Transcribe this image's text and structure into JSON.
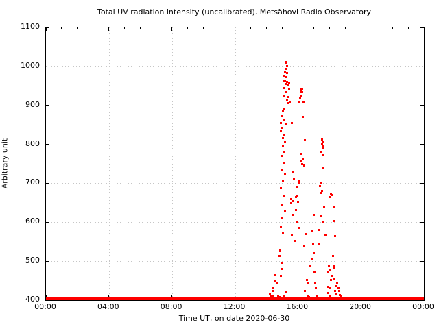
{
  "window": {
    "background": "#ffffff",
    "border_color": "#000000",
    "grid_color": "#c6c6c6"
  },
  "chart_data": {
    "type": "scatter",
    "title": "Total UV radiation intensity (uncalibrated). Metsähovi Radio Observatory",
    "xlabel": "Time UT, on date 2020-06-30",
    "ylabel": "Arbitrary unit",
    "legend_position": "none",
    "grid": "dotted",
    "marker_color": "#ff0000",
    "marker_style": "small-dot",
    "xlim_hours": [
      0,
      24
    ],
    "ylim": [
      400,
      1100
    ],
    "xticks": [
      {
        "hour": 0,
        "label": "00:00"
      },
      {
        "hour": 4,
        "label": "04:00"
      },
      {
        "hour": 8,
        "label": "08:00"
      },
      {
        "hour": 12,
        "label": "12:00"
      },
      {
        "hour": 16,
        "label": "16:00"
      },
      {
        "hour": 20,
        "label": "20:00"
      },
      {
        "hour": 24,
        "label": "00:00"
      }
    ],
    "yticks": [
      400,
      500,
      600,
      700,
      800,
      900,
      1000,
      1100
    ],
    "minor_xtick_every_hours": 1,
    "baseline": {
      "description": "dense sensor-floor readings across the entire day",
      "t_start_hours": 0,
      "t_end_hours": 24,
      "value": 403
    },
    "points": [
      [
        15.28,
        1012
      ],
      [
        15.24,
        1008
      ],
      [
        15.31,
        1000
      ],
      [
        15.26,
        993
      ],
      [
        15.2,
        985
      ],
      [
        15.32,
        983
      ],
      [
        15.13,
        974
      ],
      [
        15.28,
        972
      ],
      [
        15.09,
        963
      ],
      [
        15.2,
        962
      ],
      [
        15.31,
        960
      ],
      [
        15.43,
        958
      ],
      [
        15.24,
        955
      ],
      [
        15.35,
        953
      ],
      [
        15.11,
        944
      ],
      [
        15.46,
        942
      ],
      [
        15.27,
        933
      ],
      [
        15.15,
        925
      ],
      [
        15.41,
        921
      ],
      [
        15.29,
        912
      ],
      [
        15.49,
        909
      ],
      [
        15.38,
        905
      ],
      [
        15.14,
        892
      ],
      [
        15.07,
        885
      ],
      [
        14.99,
        873
      ],
      [
        15.11,
        862
      ],
      [
        14.94,
        855
      ],
      [
        15.63,
        855
      ],
      [
        15.21,
        852
      ],
      [
        14.98,
        842
      ],
      [
        14.91,
        833
      ],
      [
        15.13,
        825
      ],
      [
        15.07,
        816
      ],
      [
        15.17,
        806
      ],
      [
        15.03,
        794
      ],
      [
        15.1,
        780
      ],
      [
        15.01,
        771
      ],
      [
        15.12,
        752
      ],
      [
        14.99,
        733
      ],
      [
        15.16,
        722
      ],
      [
        15.04,
        705
      ],
      [
        14.91,
        688
      ],
      [
        15.09,
        667
      ],
      [
        14.96,
        644
      ],
      [
        15.19,
        629
      ],
      [
        15.01,
        611
      ],
      [
        14.93,
        589
      ],
      [
        15.06,
        571
      ],
      [
        14.86,
        527
      ],
      [
        14.83,
        513
      ],
      [
        14.96,
        496
      ],
      [
        15.01,
        480
      ],
      [
        14.51,
        464
      ],
      [
        14.91,
        462
      ],
      [
        14.59,
        450
      ],
      [
        14.69,
        443
      ],
      [
        14.38,
        432
      ],
      [
        14.46,
        423
      ],
      [
        14.21,
        417
      ],
      [
        14.31,
        410
      ],
      [
        14.12,
        407
      ],
      [
        14.26,
        404
      ],
      [
        14.56,
        407
      ],
      [
        14.76,
        411
      ],
      [
        14.06,
        403
      ],
      [
        13.96,
        404
      ],
      [
        14.42,
        412
      ],
      [
        14.64,
        405
      ],
      [
        14.86,
        408
      ],
      [
        15.22,
        420
      ],
      [
        15.3,
        405
      ],
      [
        15.1,
        410
      ],
      [
        15.61,
        567
      ],
      [
        15.81,
        552
      ],
      [
        15.65,
        728
      ],
      [
        15.76,
        710
      ],
      [
        15.71,
        619
      ],
      [
        15.59,
        659
      ],
      [
        15.69,
        654
      ],
      [
        15.86,
        664
      ],
      [
        15.96,
        669
      ],
      [
        16.01,
        652
      ],
      [
        15.91,
        689
      ],
      [
        16.06,
        699
      ],
      [
        16.11,
        705
      ],
      [
        15.56,
        648
      ],
      [
        15.87,
        632
      ],
      [
        15.97,
        601
      ],
      [
        16.05,
        585
      ],
      [
        16.19,
        943
      ],
      [
        16.29,
        941
      ],
      [
        16.16,
        936
      ],
      [
        16.26,
        933
      ],
      [
        16.23,
        925
      ],
      [
        16.13,
        918
      ],
      [
        16.06,
        909
      ],
      [
        16.36,
        907
      ],
      [
        16.33,
        871
      ],
      [
        16.46,
        810
      ],
      [
        16.22,
        776
      ],
      [
        16.31,
        764
      ],
      [
        16.26,
        749
      ],
      [
        16.41,
        745
      ],
      [
        16.21,
        758
      ],
      [
        16.51,
        570
      ],
      [
        16.91,
        578
      ],
      [
        17.01,
        619
      ],
      [
        16.41,
        538
      ],
      [
        16.96,
        543
      ],
      [
        17.02,
        522
      ],
      [
        16.86,
        505
      ],
      [
        16.56,
        452
      ],
      [
        16.66,
        443
      ],
      [
        16.46,
        423
      ],
      [
        16.76,
        489
      ],
      [
        17.06,
        473
      ],
      [
        16.61,
        412
      ],
      [
        16.71,
        408
      ],
      [
        17.11,
        445
      ],
      [
        17.16,
        431
      ],
      [
        17.51,
        812
      ],
      [
        17.56,
        807
      ],
      [
        17.53,
        802
      ],
      [
        17.58,
        795
      ],
      [
        17.61,
        789
      ],
      [
        17.49,
        781
      ],
      [
        17.63,
        774
      ],
      [
        17.6,
        740
      ],
      [
        17.46,
        701
      ],
      [
        17.39,
        692
      ],
      [
        17.51,
        680
      ],
      [
        17.43,
        675
      ],
      [
        17.68,
        640
      ],
      [
        17.48,
        615
      ],
      [
        17.56,
        599
      ],
      [
        17.76,
        566
      ],
      [
        17.36,
        580
      ],
      [
        17.31,
        545
      ],
      [
        18.18,
        670
      ],
      [
        18.31,
        638
      ],
      [
        18.26,
        603
      ],
      [
        18.01,
        665
      ],
      [
        18.11,
        672
      ],
      [
        18.36,
        564
      ],
      [
        18.21,
        513
      ],
      [
        17.96,
        489
      ],
      [
        18.06,
        476
      ],
      [
        17.91,
        473
      ],
      [
        18.26,
        484
      ],
      [
        18.29,
        487
      ],
      [
        18.16,
        462
      ],
      [
        18.31,
        455
      ],
      [
        18.41,
        436
      ],
      [
        18.36,
        424
      ],
      [
        18.46,
        417
      ],
      [
        18.11,
        452
      ],
      [
        18.01,
        430
      ],
      [
        17.86,
        434
      ],
      [
        17.88,
        419
      ],
      [
        18.51,
        443
      ],
      [
        18.56,
        430
      ],
      [
        18.61,
        423
      ],
      [
        18.66,
        414
      ],
      [
        18.76,
        409
      ],
      [
        18.86,
        406
      ],
      [
        18.96,
        404
      ],
      [
        18.06,
        412
      ],
      [
        17.93,
        407
      ],
      [
        16.81,
        407
      ],
      [
        17.21,
        409
      ],
      [
        17.26,
        405
      ]
    ]
  }
}
